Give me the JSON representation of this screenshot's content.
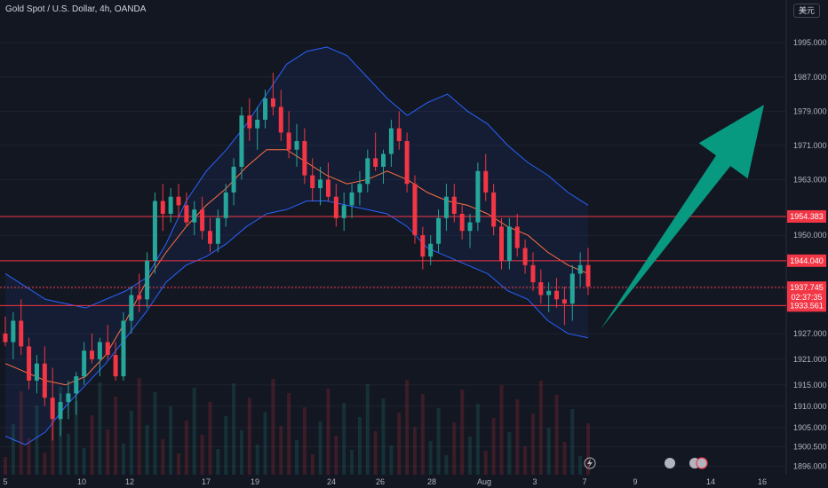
{
  "app": {
    "symbol_title": "Gold Spot / U.S. Dollar, 4h, OANDA",
    "currency_button": "美元"
  },
  "colors": {
    "background": "#131722",
    "up": "#26a69a",
    "down": "#f23645",
    "band_fill": "#2962ff",
    "band_line": "#2962ff",
    "mid_line": "#ff7043",
    "level_line": "#f23645",
    "arrow": "#089981",
    "grid": "#1e222d",
    "axis_text": "#b2b5be"
  },
  "icons": [
    "lightning-icon",
    "event-icon",
    "event-icon"
  ],
  "chart_data": {
    "type": "candlestick",
    "title": "Gold Spot / U.S. Dollar, 4h, OANDA",
    "y_axis": {
      "side": "right",
      "range": [
        1894.0,
        2005.0
      ],
      "ticks": [
        "1995.000",
        "1987.000",
        "1979.000",
        "1971.000",
        "1963.000",
        "1950.000",
        "1938.000",
        "1927.000",
        "1921.000",
        "1915.000",
        "1910.000",
        "1905.000",
        "1900.500",
        "1896.000"
      ]
    },
    "x_axis": {
      "ticks": [
        "5",
        "10",
        "12",
        "17",
        "19",
        "24",
        "26",
        "28",
        "Aug",
        "3",
        "7",
        "9",
        "14",
        "16"
      ]
    },
    "levels": [
      {
        "label": "1954.383",
        "value": 1954.383,
        "style": "solid"
      },
      {
        "label": "1944.040",
        "value": 1944.04,
        "style": "solid"
      },
      {
        "label": "1933.561",
        "value": 1933.561,
        "style": "solid"
      }
    ],
    "last_price": {
      "label": "1937.745",
      "value": 1937.745,
      "countdown": "02:37:35"
    },
    "candles": [
      [
        1927,
        1931,
        1924,
        1925
      ],
      [
        1925,
        1932,
        1921,
        1930
      ],
      [
        1930,
        1935,
        1922,
        1924
      ],
      [
        1924,
        1926,
        1914,
        1916
      ],
      [
        1916,
        1922,
        1913,
        1920
      ],
      [
        1920,
        1924,
        1910,
        1912
      ],
      [
        1912,
        1919,
        1902,
        1907
      ],
      [
        1907,
        1913,
        1903,
        1911
      ],
      [
        1911,
        1916,
        1907,
        1913
      ],
      [
        1913,
        1918,
        1908,
        1917
      ],
      [
        1917,
        1925,
        1915,
        1923
      ],
      [
        1923,
        1927,
        1920,
        1921
      ],
      [
        1921,
        1926,
        1917,
        1925
      ],
      [
        1925,
        1929,
        1921,
        1922
      ],
      [
        1922,
        1925,
        1916,
        1917
      ],
      [
        1917,
        1932,
        1916,
        1930
      ],
      [
        1930,
        1938,
        1927,
        1936
      ],
      [
        1936,
        1941,
        1932,
        1935
      ],
      [
        1935,
        1946,
        1933,
        1944
      ],
      [
        1944,
        1960,
        1941,
        1958
      ],
      [
        1958,
        1962,
        1951,
        1955
      ],
      [
        1955,
        1961,
        1953,
        1959
      ],
      [
        1959,
        1962,
        1954,
        1957
      ],
      [
        1957,
        1960,
        1952,
        1953
      ],
      [
        1953,
        1958,
        1950,
        1956
      ],
      [
        1956,
        1959,
        1949,
        1951
      ],
      [
        1951,
        1954,
        1946,
        1948
      ],
      [
        1948,
        1956,
        1946,
        1954
      ],
      [
        1954,
        1962,
        1952,
        1960
      ],
      [
        1960,
        1968,
        1957,
        1966
      ],
      [
        1966,
        1980,
        1963,
        1978
      ],
      [
        1978,
        1982,
        1972,
        1975
      ],
      [
        1975,
        1980,
        1970,
        1977
      ],
      [
        1977,
        1984,
        1975,
        1982
      ],
      [
        1982,
        1988,
        1978,
        1980
      ],
      [
        1980,
        1984,
        1972,
        1974
      ],
      [
        1974,
        1979,
        1968,
        1970
      ],
      [
        1970,
        1976,
        1966,
        1972
      ],
      [
        1972,
        1975,
        1962,
        1964
      ],
      [
        1964,
        1968,
        1958,
        1961
      ],
      [
        1961,
        1966,
        1957,
        1963
      ],
      [
        1963,
        1967,
        1958,
        1959
      ],
      [
        1959,
        1962,
        1952,
        1954
      ],
      [
        1954,
        1960,
        1951,
        1957
      ],
      [
        1957,
        1962,
        1954,
        1960
      ],
      [
        1960,
        1965,
        1957,
        1962
      ],
      [
        1962,
        1970,
        1960,
        1968
      ],
      [
        1968,
        1974,
        1965,
        1966
      ],
      [
        1966,
        1970,
        1962,
        1969
      ],
      [
        1969,
        1977,
        1966,
        1975
      ],
      [
        1975,
        1979,
        1970,
        1972
      ],
      [
        1972,
        1974,
        1960,
        1962
      ],
      [
        1962,
        1964,
        1948,
        1950
      ],
      [
        1950,
        1952,
        1942,
        1945
      ],
      [
        1945,
        1950,
        1943,
        1948
      ],
      [
        1948,
        1956,
        1946,
        1954
      ],
      [
        1954,
        1962,
        1951,
        1959
      ],
      [
        1959,
        1962,
        1953,
        1955
      ],
      [
        1955,
        1957,
        1949,
        1951
      ],
      [
        1951,
        1955,
        1947,
        1953
      ],
      [
        1953,
        1967,
        1951,
        1965
      ],
      [
        1965,
        1969,
        1958,
        1960
      ],
      [
        1960,
        1962,
        1950,
        1952
      ],
      [
        1952,
        1954,
        1942,
        1944
      ],
      [
        1944,
        1954,
        1942,
        1952
      ],
      [
        1952,
        1955,
        1945,
        1947
      ],
      [
        1947,
        1949,
        1941,
        1943
      ],
      [
        1943,
        1946,
        1937,
        1939
      ],
      [
        1939,
        1942,
        1934,
        1936
      ],
      [
        1936,
        1939,
        1932,
        1937
      ],
      [
        1937,
        1940,
        1933,
        1935
      ],
      [
        1935,
        1938,
        1929,
        1934
      ],
      [
        1934,
        1943,
        1930,
        1941
      ],
      [
        1941,
        1946,
        1938,
        1943
      ],
      [
        1943,
        1947,
        1936,
        1938
      ]
    ],
    "bollinger": {
      "upper": [
        1941,
        1938,
        1935,
        1934,
        1933,
        1935,
        1937,
        1940,
        1948,
        1958,
        1965,
        1970,
        1976,
        1983,
        1990,
        1993,
        1994,
        1992,
        1987,
        1982,
        1978,
        1981,
        1983,
        1979,
        1976,
        1971,
        1967,
        1964,
        1960,
        1957
      ],
      "mid": [
        1920,
        1918,
        1916,
        1915,
        1917,
        1922,
        1930,
        1939,
        1946,
        1952,
        1957,
        1961,
        1966,
        1970,
        1970,
        1967,
        1964,
        1962,
        1963,
        1965,
        1963,
        1960,
        1958,
        1957,
        1955,
        1952,
        1950,
        1946,
        1943,
        1941
      ],
      "lower": [
        1903,
        1901,
        1904,
        1910,
        1915,
        1920,
        1926,
        1932,
        1939,
        1943,
        1945,
        1948,
        1952,
        1955,
        1956,
        1958,
        1958,
        1957,
        1956,
        1955,
        1952,
        1947,
        1945,
        1943,
        1941,
        1937,
        1935,
        1930,
        1927,
        1926
      ]
    },
    "annotation": {
      "type": "arrow",
      "direction": "up",
      "from_price": 1928.0,
      "to_price": 1980.5
    }
  }
}
